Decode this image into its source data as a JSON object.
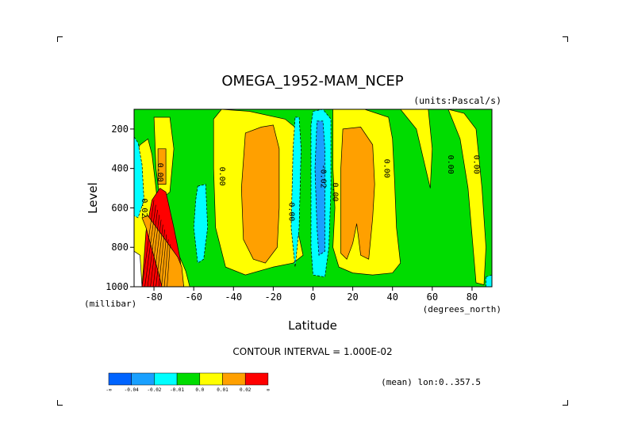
{
  "chart_data": {
    "type": "heatmap",
    "title": "OMEGA_1952-MAM_NCEP",
    "units": "(units:Pascal/s)",
    "xlabel": "Latitude",
    "x_units": "(degrees_north)",
    "ylabel": "Level",
    "y_units": "(millibar)",
    "xlim": [
      -90,
      90
    ],
    "ylim": [
      1000,
      100
    ],
    "y_reversed": true,
    "x_ticks": [
      -80,
      -60,
      -40,
      -20,
      0,
      20,
      40,
      60,
      80
    ],
    "y_ticks": [
      200,
      400,
      600,
      800,
      1000
    ],
    "contour_interval_text": "CONTOUR INTERVAL = 1.000E-02",
    "footer_text": "(mean) lon:0..357.5",
    "contour_labels": [
      {
        "text": "0.00",
        "lat": -78,
        "lev": 420
      },
      {
        "text": "0.02",
        "lat": -86,
        "lev": 600
      },
      {
        "text": "0.00",
        "lat": -47,
        "lev": 440
      },
      {
        "text": "0.00",
        "lat": -12,
        "lev": 620
      },
      {
        "text": "-0.02",
        "lat": 4,
        "lev": 440
      },
      {
        "text": "0.00",
        "lat": 10,
        "lev": 520
      },
      {
        "text": "0.00",
        "lat": 36,
        "lev": 400
      },
      {
        "text": "0.00",
        "lat": 68,
        "lev": 380
      },
      {
        "text": "0.00",
        "lat": 81,
        "lev": 380
      }
    ],
    "legend": {
      "bins": [
        {
          "color": "#0064ff",
          "label": "-∞"
        },
        {
          "color": "#19a0ff",
          "label": "-0.04"
        },
        {
          "color": "#00ffff",
          "label": "-0.02"
        },
        {
          "color": "#00dc00",
          "label": "-0.01"
        },
        {
          "color": "#ffff00",
          "label": "0.0"
        },
        {
          "color": "#ffa000",
          "label": "0.01"
        },
        {
          "color": "#ff0000",
          "label": "0.02"
        }
      ],
      "end_label": "∞"
    },
    "colors": {
      "background_field": "#00dc00",
      "positive_1": "#ffff00",
      "positive_2": "#ffa000",
      "positive_3": "#ff0000",
      "negative_1": "#00ffff",
      "negative_2": "#19a0ff",
      "missing": "#ffffff"
    },
    "regions": [
      {
        "level": "positive_1",
        "points": [
          [
            -90,
            340
          ],
          [
            -87,
            280
          ],
          [
            -83,
            250
          ],
          [
            -81,
            330
          ],
          [
            -79,
            500
          ],
          [
            -77,
            700
          ],
          [
            -70,
            780
          ],
          [
            -64,
            920
          ],
          [
            -62,
            1000
          ],
          [
            -90,
            1000
          ]
        ]
      },
      {
        "level": "positive_1",
        "points": [
          [
            -80,
            140
          ],
          [
            -72,
            140
          ],
          [
            -70,
            300
          ],
          [
            -72,
            520
          ],
          [
            -77,
            560
          ],
          [
            -79,
            400
          ]
        ]
      },
      {
        "level": "positive_2",
        "points": [
          [
            -78,
            300
          ],
          [
            -74,
            300
          ],
          [
            -74,
            480
          ],
          [
            -78,
            480
          ]
        ]
      },
      {
        "level": "positive_3",
        "points": [
          [
            -84,
            720
          ],
          [
            -81,
            560
          ],
          [
            -77,
            500
          ],
          [
            -74,
            520
          ],
          [
            -70,
            700
          ],
          [
            -67,
            850
          ],
          [
            -65,
            1000
          ],
          [
            -86,
            1000
          ]
        ]
      },
      {
        "level": "positive_2",
        "points": [
          [
            -86,
            650
          ],
          [
            -84,
            700
          ],
          [
            -78,
            920
          ],
          [
            -76,
            1000
          ],
          [
            -65,
            1000
          ],
          [
            -66,
            900
          ],
          [
            -68,
            850
          ],
          [
            -83,
            640
          ]
        ]
      },
      {
        "level": "negative_1",
        "points": [
          [
            -90,
            240
          ],
          [
            -88,
            270
          ],
          [
            -86,
            380
          ],
          [
            -85,
            560
          ],
          [
            -88,
            650
          ],
          [
            -90,
            640
          ]
        ]
      },
      {
        "level": "negative_1",
        "points": [
          [
            -58,
            490
          ],
          [
            -54,
            480
          ],
          [
            -53,
            700
          ],
          [
            -55,
            860
          ],
          [
            -58,
            880
          ],
          [
            -60,
            700
          ],
          [
            -59,
            560
          ]
        ]
      },
      {
        "level": "positive_1",
        "points": [
          [
            -46,
            100
          ],
          [
            -32,
            110
          ],
          [
            -14,
            150
          ],
          [
            -8,
            200
          ],
          [
            -10,
            500
          ],
          [
            -8,
            700
          ],
          [
            -5,
            840
          ],
          [
            -10,
            880
          ],
          [
            -20,
            900
          ],
          [
            -34,
            940
          ],
          [
            -44,
            900
          ],
          [
            -49,
            700
          ],
          [
            -50,
            400
          ],
          [
            -50,
            150
          ]
        ]
      },
      {
        "level": "positive_2",
        "points": [
          [
            -34,
            220
          ],
          [
            -26,
            190
          ],
          [
            -20,
            180
          ],
          [
            -17,
            300
          ],
          [
            -17,
            600
          ],
          [
            -18,
            800
          ],
          [
            -24,
            880
          ],
          [
            -30,
            860
          ],
          [
            -35,
            760
          ],
          [
            -36,
            500
          ]
        ]
      },
      {
        "level": "negative_1",
        "points": [
          [
            -9,
            140
          ],
          [
            -7,
            140
          ],
          [
            -6,
            300
          ],
          [
            -7,
            700
          ],
          [
            -9,
            900
          ],
          [
            -11,
            700
          ],
          [
            -10,
            300
          ]
        ]
      },
      {
        "level": "negative_1",
        "points": [
          [
            0,
            110
          ],
          [
            5,
            100
          ],
          [
            9,
            150
          ],
          [
            9,
            500
          ],
          [
            8,
            800
          ],
          [
            6,
            950
          ],
          [
            0,
            940
          ],
          [
            -1,
            800
          ],
          [
            -1,
            500
          ],
          [
            -1,
            180
          ]
        ]
      },
      {
        "level": "negative_2",
        "points": [
          [
            2,
            160
          ],
          [
            5,
            160
          ],
          [
            6,
            300
          ],
          [
            6,
            600
          ],
          [
            6,
            820
          ],
          [
            3,
            840
          ],
          [
            2,
            700
          ],
          [
            1,
            400
          ]
        ]
      },
      {
        "level": "positive_1",
        "points": [
          [
            10,
            100
          ],
          [
            26,
            100
          ],
          [
            38,
            140
          ],
          [
            40,
            250
          ],
          [
            41,
            450
          ],
          [
            42,
            700
          ],
          [
            44,
            880
          ],
          [
            40,
            930
          ],
          [
            30,
            940
          ],
          [
            20,
            930
          ],
          [
            13,
            900
          ],
          [
            10,
            800
          ],
          [
            11,
            600
          ],
          [
            10,
            400
          ],
          [
            10,
            200
          ]
        ]
      },
      {
        "level": "positive_2",
        "points": [
          [
            15,
            200
          ],
          [
            24,
            190
          ],
          [
            30,
            280
          ],
          [
            31,
            480
          ],
          [
            30,
            650
          ],
          [
            28,
            860
          ],
          [
            24,
            840
          ],
          [
            22,
            680
          ],
          [
            20,
            780
          ],
          [
            17,
            860
          ],
          [
            14,
            830
          ],
          [
            14,
            600
          ],
          [
            14,
            400
          ]
        ]
      },
      {
        "level": "positive_1",
        "points": [
          [
            44,
            100
          ],
          [
            58,
            100
          ],
          [
            60,
            300
          ],
          [
            59,
            500
          ],
          [
            52,
            200
          ]
        ]
      },
      {
        "level": "positive_1",
        "points": [
          [
            68,
            100
          ],
          [
            76,
            120
          ],
          [
            82,
            200
          ],
          [
            85,
            500
          ],
          [
            87,
            800
          ],
          [
            86,
            990
          ],
          [
            82,
            980
          ],
          [
            78,
            500
          ],
          [
            74,
            250
          ],
          [
            70,
            150
          ]
        ]
      },
      {
        "level": "negative_1",
        "points": [
          [
            87,
            950
          ],
          [
            90,
            940
          ],
          [
            90,
            1000
          ],
          [
            87,
            1000
          ]
        ]
      },
      {
        "level": "missing",
        "points": [
          [
            -90,
            820
          ],
          [
            -87,
            840
          ],
          [
            -86,
            1000
          ],
          [
            -90,
            1000
          ]
        ]
      }
    ]
  }
}
